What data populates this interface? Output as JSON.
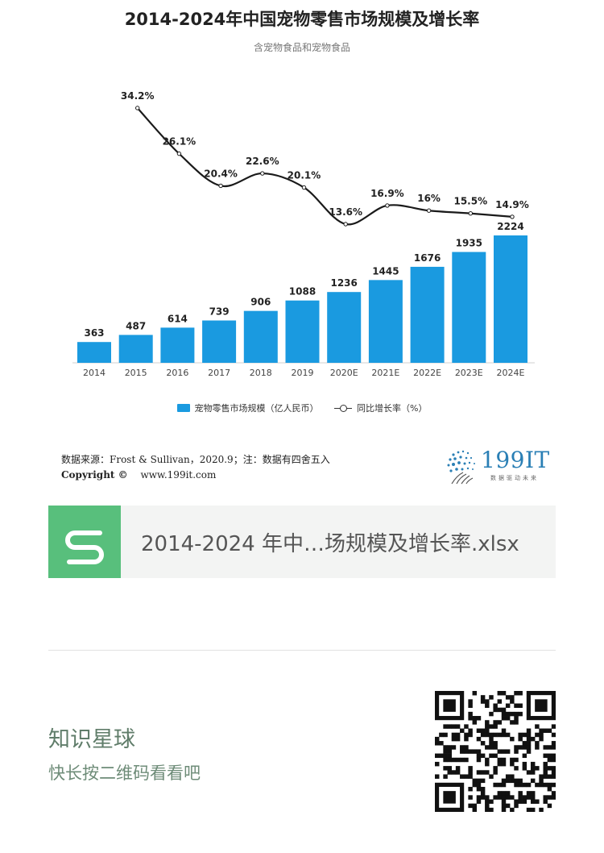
{
  "chart_data": {
    "type": "bar",
    "title": "2014-2024年中国宠物零售市场规模及增长率",
    "subtitle": "含宠物食品和宠物食品",
    "categories": [
      "2014",
      "2015",
      "2016",
      "2017",
      "2018",
      "2019",
      "2020E",
      "2021E",
      "2022E",
      "2023E",
      "2024E"
    ],
    "series": [
      {
        "name": "宠物零售市场规模（亿人民币）",
        "type": "bar",
        "values": [
          363,
          487,
          614,
          739,
          906,
          1088,
          1236,
          1445,
          1676,
          1935,
          2224
        ],
        "labels": [
          "363",
          "487",
          "614",
          "739",
          "906",
          "1088",
          "1236",
          "1445",
          "1676",
          "1935",
          "2224"
        ],
        "color": "#1a9ae0"
      },
      {
        "name": "同比增长率（%）",
        "type": "line",
        "x": [
          "2015",
          "2016",
          "2017",
          "2018",
          "2019",
          "2020E",
          "2021E",
          "2022E",
          "2023E",
          "2024E"
        ],
        "values": [
          34.2,
          26.1,
          20.4,
          22.6,
          20.1,
          13.6,
          16.9,
          16.0,
          15.5,
          14.9
        ],
        "labels": [
          "34.2%",
          "26.1%",
          "20.4%",
          "22.6%",
          "20.1%",
          "13.6%",
          "16.9%",
          "16%",
          "15.5%",
          "14.9%"
        ],
        "color": "#1a1a1a"
      }
    ],
    "legend_position": "bottom",
    "grid": false
  },
  "source_note": "数据来源：Frost & Sullivan，2020.9；注：数据有四舍五入",
  "copyright_label": "Copyright ©",
  "copyright_url": "www.199it.com",
  "logo": {
    "brand": "199IT",
    "tagline": "数据驱动未来"
  },
  "file_card": {
    "filename": "2014-2024 年中…场规模及增长率.xlsx",
    "icon": "s-file-icon"
  },
  "footer": {
    "title": "知识星球",
    "hint": "快长按二维码看看吧",
    "qr": "qr-code"
  },
  "colors": {
    "bar": "#1a9ae0",
    "line": "#1a1a1a",
    "file_icon": "#58bf7c",
    "footer_text": "#607d6a"
  }
}
